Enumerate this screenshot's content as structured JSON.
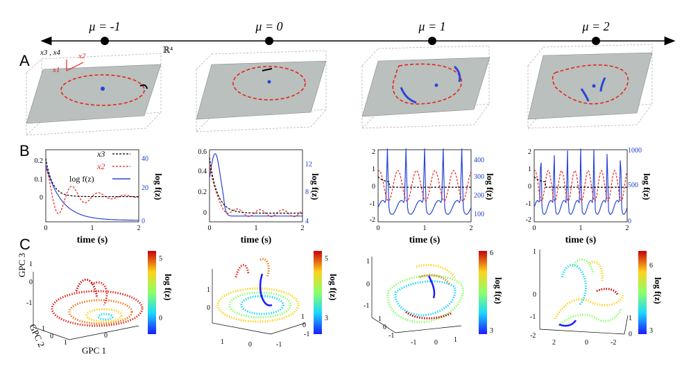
{
  "row_labels": {
    "a": "A",
    "b": "B",
    "c": "C"
  },
  "mu_labels": [
    "μ = -1",
    "μ = 0",
    "μ = 1",
    "μ = 2"
  ],
  "space_label": "ℝ⁴",
  "axes3d": {
    "x34": "x3 , x4",
    "x1": "x1",
    "x2": "x2"
  },
  "colors": {
    "red": "#e8231a",
    "black": "#000000",
    "blue": "#2a45d8",
    "plane": "#b9c0bd"
  },
  "legend": {
    "x3": "x3",
    "x2": "x2",
    "logf": "log f(z)"
  },
  "time_label": "time (s)",
  "logf_label": "log f(z)",
  "gpc": {
    "gpc1": "GPC 1",
    "gpc2": "GPC 2",
    "gpc3": "GPC 3"
  },
  "panelB": [
    {
      "x_ticks": [
        "0",
        "1",
        "2"
      ],
      "left_ticks": [
        "0.2",
        "0.1",
        "0"
      ],
      "right_ticks": [
        "40",
        "20",
        "0"
      ],
      "x3": 0,
      "x2_amp": 0.08,
      "x2_decay": 1.8,
      "logf_start": 38
    },
    {
      "x_ticks": [
        "0",
        "1",
        "2"
      ],
      "left_ticks": [
        "0.6",
        "0.4",
        "0.2",
        "0"
      ],
      "right_ticks": [
        "12",
        "8",
        "4"
      ],
      "x3": 0,
      "x2_amp": 0.02,
      "x2_decay": 0.3,
      "logf_start": 12
    },
    {
      "x_ticks": [
        "0",
        "1",
        "2"
      ],
      "left_ticks": [
        "2",
        "1",
        "0",
        "-1",
        "-2"
      ],
      "right_ticks": [
        "400",
        "300",
        "200",
        "100"
      ],
      "x3": 0,
      "spikes": 5
    },
    {
      "x_ticks": [
        "0",
        "1",
        "2"
      ],
      "left_ticks": [
        "2",
        "1",
        "0",
        "-1",
        "-2"
      ],
      "right_ticks": [
        "1000",
        "500",
        "0"
      ],
      "x3": 0,
      "spikes": 7
    }
  ],
  "panelC": [
    {
      "cbar_ticks": [
        "5",
        "0"
      ],
      "axis_ticks": {
        "gpc3": [
          "1",
          "0",
          "-1"
        ],
        "gpc2": [
          "1",
          "0",
          "-1"
        ],
        "gpc1": [
          "1",
          "0"
        ]
      }
    },
    {
      "cbar_ticks": [
        "5",
        "3"
      ],
      "axis_ticks": {
        "left": [
          "1",
          "0"
        ],
        "bottom": [
          "1",
          "0",
          "-1"
        ],
        "right": [
          "1",
          "0",
          "-1"
        ]
      }
    },
    {
      "cbar_ticks": [
        "6",
        "3"
      ],
      "axis_ticks": {
        "left": [
          "1",
          "0",
          "-1"
        ],
        "side": [
          "1",
          "0",
          "-1"
        ],
        "bottom": [
          "-1",
          "0",
          "1"
        ]
      }
    },
    {
      "cbar_ticks": [
        "6",
        "3"
      ],
      "axis_ticks": {
        "left": [
          "1",
          "0",
          "-1",
          "-2"
        ],
        "bottom": [
          "2",
          "0",
          "-2"
        ],
        "right": [
          "1",
          "0"
        ]
      }
    }
  ]
}
